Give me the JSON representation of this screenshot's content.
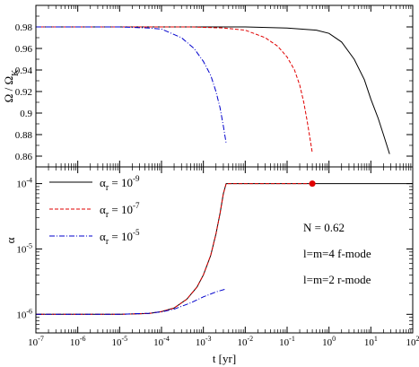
{
  "chart_data": [
    {
      "type": "line",
      "panel": "top",
      "ylabel": "Ω / Ω_K",
      "ylim": [
        0.85,
        1.0
      ],
      "yticks": [
        0.86,
        0.88,
        0.9,
        0.92,
        0.94,
        0.96,
        0.98
      ],
      "ytick_labels": [
        "0.86",
        "0.88",
        "0.9",
        "0.92",
        "0.94",
        "0.96",
        "0.98"
      ],
      "xscale": "log",
      "xlim": [
        1e-07,
        100
      ],
      "grid": false,
      "series": [
        {
          "color": "#000000",
          "dash": "solid",
          "x": [
            1e-07,
            0.01,
            0.1,
            0.5,
            1,
            2,
            4,
            7,
            10,
            15,
            20,
            28
          ],
          "y": [
            0.98,
            0.98,
            0.979,
            0.977,
            0.974,
            0.966,
            0.95,
            0.931,
            0.913,
            0.895,
            0.88,
            0.862
          ]
        },
        {
          "color": "#e00000",
          "dash": "dashed",
          "x": [
            1e-07,
            0.0005,
            0.003,
            0.01,
            0.03,
            0.06,
            0.1,
            0.15,
            0.2,
            0.25,
            0.3,
            0.35,
            0.4
          ],
          "y": [
            0.98,
            0.98,
            0.979,
            0.977,
            0.97,
            0.962,
            0.952,
            0.94,
            0.926,
            0.91,
            0.893,
            0.877,
            0.863
          ]
        },
        {
          "color": "#0000cc",
          "dash": "dashdot",
          "x": [
            1e-07,
            1e-05,
            5e-05,
            0.0001,
            0.0003,
            0.0006,
            0.001,
            0.0015,
            0.002,
            0.0025,
            0.003,
            0.0035
          ],
          "y": [
            0.98,
            0.98,
            0.979,
            0.978,
            0.97,
            0.96,
            0.948,
            0.935,
            0.92,
            0.905,
            0.888,
            0.872
          ]
        }
      ]
    },
    {
      "type": "line",
      "panel": "bottom",
      "xlabel": "t [yr]",
      "ylabel": "α",
      "xscale": "log",
      "yscale": "log",
      "xlim": [
        1e-07,
        100
      ],
      "ylim": [
        5.2e-07,
        0.00018
      ],
      "yticks": [
        1e-06,
        1e-05,
        0.0001
      ],
      "ytick_labels": [
        [
          "10",
          "-6"
        ],
        [
          "10",
          "-5"
        ],
        [
          "10",
          "-4"
        ]
      ],
      "xticks": [
        1e-07,
        1e-06,
        1e-05,
        0.0001,
        0.001,
        0.01,
        0.1,
        1,
        10,
        100
      ],
      "xtick_labels": [
        [
          "10",
          "-7"
        ],
        [
          "10",
          "-6"
        ],
        [
          "10",
          "-5"
        ],
        [
          "10",
          "-4"
        ],
        [
          "10",
          "-3"
        ],
        [
          "10",
          "-2"
        ],
        [
          "10",
          "-1"
        ],
        [
          "10",
          "0"
        ],
        [
          "10",
          "1"
        ],
        [
          "10",
          "2"
        ]
      ],
      "grid": false,
      "legend_position": "top-left",
      "series": [
        {
          "name": "α_r = 10^-9",
          "name_parts": [
            "α",
            "r",
            " = 10",
            "-9"
          ],
          "color": "#000000",
          "dash": "solid",
          "x": [
            1e-07,
            1e-05,
            5e-05,
            0.0001,
            0.0002,
            0.0004,
            0.0007,
            0.001,
            0.0015,
            0.002,
            0.0025,
            0.003,
            0.0035,
            100
          ],
          "y": [
            1e-06,
            1e-06,
            1.03e-06,
            1.1e-06,
            1.25e-06,
            1.7e-06,
            2.6e-06,
            4e-06,
            8e-06,
            1.7e-05,
            3.5e-05,
            7e-05,
            0.0001,
            0.0001
          ]
        },
        {
          "name": "α_r = 10^-7",
          "name_parts": [
            "α",
            "r",
            " = 10",
            "-7"
          ],
          "color": "#e00000",
          "dash": "dashed",
          "x": [
            1e-07,
            1e-05,
            5e-05,
            0.0001,
            0.0002,
            0.0004,
            0.0007,
            0.001,
            0.0015,
            0.002,
            0.0025,
            0.003,
            0.0035,
            0.4
          ],
          "y": [
            1e-06,
            1e-06,
            1.03e-06,
            1.1e-06,
            1.25e-06,
            1.7e-06,
            2.6e-06,
            4e-06,
            8e-06,
            1.7e-05,
            3.5e-05,
            7e-05,
            0.0001,
            0.0001
          ]
        },
        {
          "name": "α_r = 10^-5",
          "name_parts": [
            "α",
            "r",
            " = 10",
            "-5"
          ],
          "color": "#0000cc",
          "dash": "dashdot",
          "x": [
            1e-07,
            1e-05,
            5e-05,
            0.0001,
            0.0002,
            0.0005,
            0.001,
            0.002,
            0.0035
          ],
          "y": [
            1e-06,
            1e-06,
            1.04e-06,
            1.09e-06,
            1.2e-06,
            1.5e-06,
            1.85e-06,
            2.2e-06,
            2.45e-06
          ]
        }
      ],
      "marker": {
        "x": 0.4,
        "y": 0.0001,
        "color": "#e00000"
      },
      "annotations": [
        "N = 0.62",
        "l=m=4 f-mode",
        "l=m=2 r-mode"
      ]
    }
  ]
}
